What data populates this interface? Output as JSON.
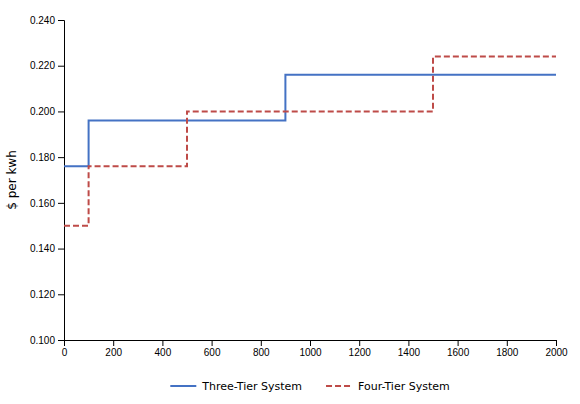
{
  "chart_data": {
    "type": "line",
    "ylabel": "$ per kwh",
    "xlim": [
      0,
      2000
    ],
    "ylim": [
      0.1,
      0.24
    ],
    "xticks": [
      0,
      200,
      400,
      600,
      800,
      1000,
      1200,
      1400,
      1600,
      1800,
      2000
    ],
    "yticks": [
      {
        "value": 0.1,
        "label": "0.100"
      },
      {
        "value": 0.12,
        "label": "0.120"
      },
      {
        "value": 0.14,
        "label": "0.140"
      },
      {
        "value": 0.16,
        "label": "0.160"
      },
      {
        "value": 0.18,
        "label": "0.180"
      },
      {
        "value": 0.2,
        "label": "0.200"
      },
      {
        "value": 0.22,
        "label": "0.220"
      },
      {
        "value": 0.24,
        "label": "0.240"
      }
    ],
    "grid": false,
    "legend": "bottom",
    "series": [
      {
        "name": "Three-Tier System",
        "color": "#4472c4",
        "line_style": "solid",
        "x": [
          0,
          100,
          100,
          900,
          900,
          2000
        ],
        "values": [
          0.176,
          0.176,
          0.196,
          0.196,
          0.216,
          0.216
        ]
      },
      {
        "name": "Four-Tier System",
        "color": "#be4b48",
        "line_style": "dashed",
        "x": [
          0,
          100,
          100,
          500,
          500,
          1500,
          1500,
          2000
        ],
        "values": [
          0.15,
          0.15,
          0.176,
          0.176,
          0.2,
          0.2,
          0.224,
          0.224
        ]
      }
    ]
  }
}
